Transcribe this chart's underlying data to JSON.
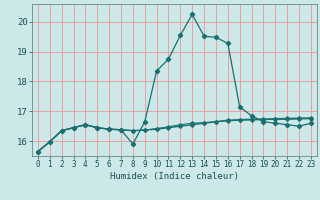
{
  "xlabel": "Humidex (Indice chaleur)",
  "background_color": "#cce8e8",
  "grid_color": "#e8a0a0",
  "line_color": "#1a7070",
  "xlim": [
    -0.5,
    23.5
  ],
  "ylim": [
    15.5,
    20.6
  ],
  "xticks": [
    0,
    1,
    2,
    3,
    4,
    5,
    6,
    7,
    8,
    9,
    10,
    11,
    12,
    13,
    14,
    15,
    16,
    17,
    18,
    19,
    20,
    21,
    22,
    23
  ],
  "yticks": [
    16,
    17,
    18,
    19,
    20
  ],
  "line1_x": [
    0,
    1,
    2,
    3,
    4,
    5,
    6,
    7,
    8,
    9,
    10,
    11,
    12,
    13,
    14,
    15,
    16,
    17,
    18,
    19,
    20,
    21,
    22,
    23
  ],
  "line1_y": [
    15.65,
    15.98,
    16.35,
    16.45,
    16.55,
    16.45,
    16.4,
    16.38,
    15.9,
    16.65,
    18.35,
    18.75,
    19.55,
    20.25,
    19.52,
    19.48,
    19.28,
    17.15,
    16.85,
    16.65,
    16.6,
    16.55,
    16.5,
    16.6
  ],
  "line2_x": [
    0,
    1,
    2,
    3,
    4,
    5,
    6,
    7,
    8,
    9,
    10,
    11,
    12,
    13,
    14,
    15,
    16,
    17,
    18,
    19,
    20,
    21,
    22,
    23
  ],
  "line2_y": [
    15.65,
    15.98,
    16.35,
    16.45,
    16.55,
    16.45,
    16.4,
    16.38,
    16.35,
    16.37,
    16.4,
    16.45,
    16.5,
    16.55,
    16.6,
    16.65,
    16.7,
    16.72,
    16.73,
    16.74,
    16.75,
    16.76,
    16.77,
    16.78
  ],
  "line3_x": [
    0,
    1,
    2,
    3,
    4,
    5,
    6,
    7,
    8,
    9,
    10,
    11,
    12,
    13,
    14,
    15,
    16,
    17,
    18,
    19,
    20,
    21,
    22,
    23
  ],
  "line3_y": [
    15.65,
    15.98,
    16.35,
    16.45,
    16.55,
    16.45,
    16.4,
    16.38,
    16.35,
    16.37,
    16.42,
    16.48,
    16.55,
    16.6,
    16.62,
    16.65,
    16.68,
    16.7,
    16.71,
    16.72,
    16.73,
    16.73,
    16.74,
    16.75
  ]
}
